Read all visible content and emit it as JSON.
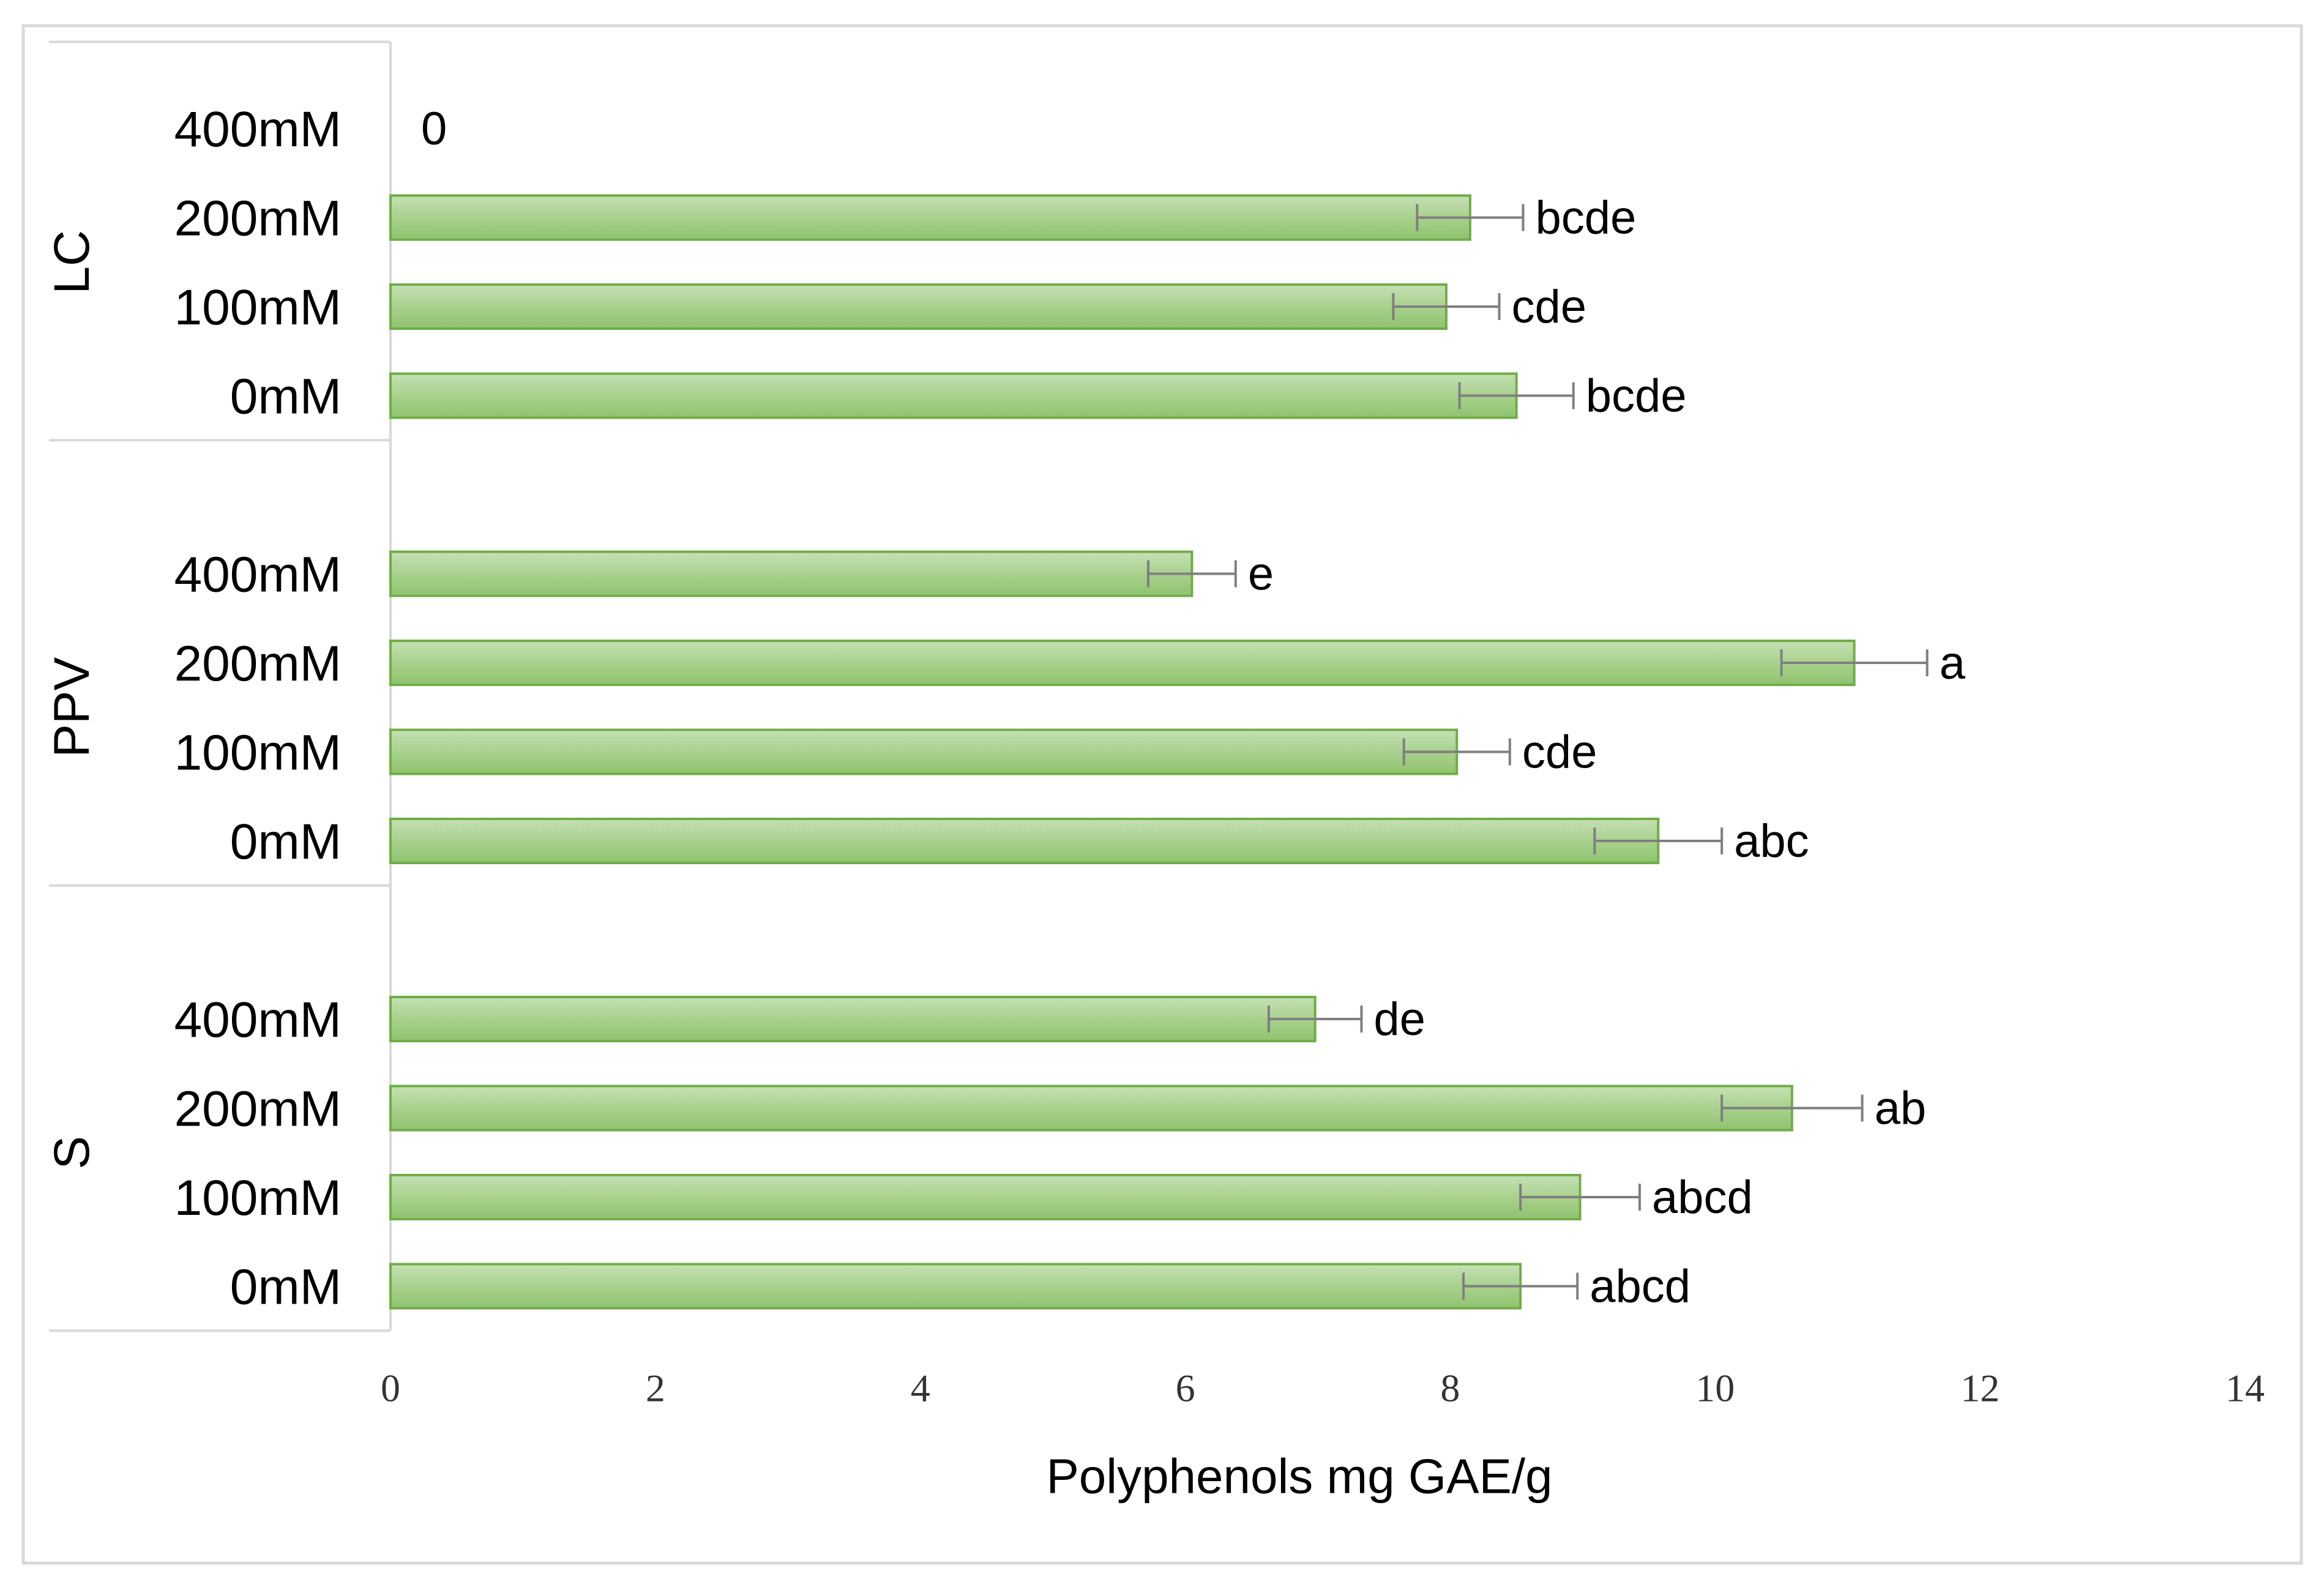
{
  "chart_data": {
    "type": "bar",
    "orientation": "horizontal",
    "title": "",
    "xlabel": "Polyphenols mg GAE/g",
    "ylabel": "",
    "xlim": [
      0,
      14
    ],
    "xticks": [
      0,
      2,
      4,
      6,
      8,
      10,
      12,
      14
    ],
    "x_tick_labels": [
      "0",
      "2",
      "4",
      "6",
      "8",
      "10",
      "12",
      "14"
    ],
    "grid": false,
    "legend": "none",
    "bar_color": "#a9d18e",
    "bar_edge_color": "#70ad47",
    "error_bar_color": "#7f7f7f",
    "groups": [
      {
        "name": "LC",
        "items": [
          {
            "category": "400mM",
            "value": 0,
            "error": 0,
            "label": "0"
          },
          {
            "category": "200mM",
            "value": 8.15,
            "error": 0.4,
            "label": "bcde"
          },
          {
            "category": "100mM",
            "value": 7.97,
            "error": 0.4,
            "label": "cde"
          },
          {
            "category": "0mM",
            "value": 8.5,
            "error": 0.43,
            "label": "bcde"
          }
        ]
      },
      {
        "name": "PPV",
        "items": [
          {
            "category": "400mM",
            "value": 6.05,
            "error": 0.33,
            "label": "e"
          },
          {
            "category": "200mM",
            "value": 11.05,
            "error": 0.55,
            "label": "a"
          },
          {
            "category": "100mM",
            "value": 8.05,
            "error": 0.4,
            "label": "cde"
          },
          {
            "category": "0mM",
            "value": 9.57,
            "error": 0.48,
            "label": "abc"
          }
        ]
      },
      {
        "name": "S",
        "items": [
          {
            "category": "400mM",
            "value": 6.98,
            "error": 0.35,
            "label": "de"
          },
          {
            "category": "200mM",
            "value": 10.58,
            "error": 0.53,
            "label": "ab"
          },
          {
            "category": "100mM",
            "value": 8.98,
            "error": 0.45,
            "label": "abcd"
          },
          {
            "category": "0mM",
            "value": 8.53,
            "error": 0.43,
            "label": "abcd"
          }
        ]
      }
    ]
  }
}
